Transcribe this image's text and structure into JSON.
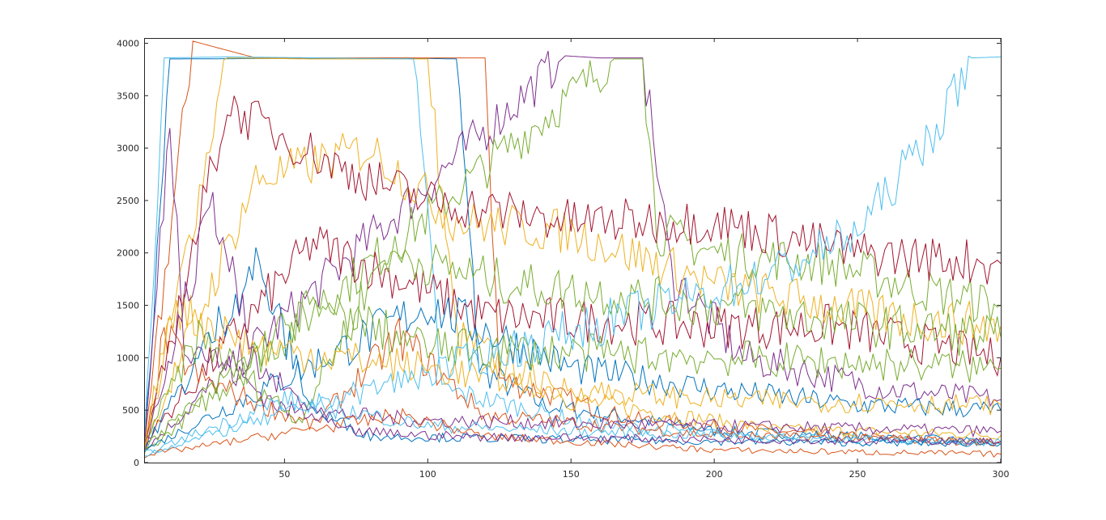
{
  "chart_data": {
    "type": "line",
    "title": "",
    "xlabel": "",
    "ylabel": "",
    "xlim": [
      1,
      300
    ],
    "ylim": [
      0,
      4050
    ],
    "x_ticks": [
      {
        "value": 50,
        "label": "50"
      },
      {
        "value": 100,
        "label": "100"
      },
      {
        "value": 150,
        "label": "150"
      },
      {
        "value": 200,
        "label": "200"
      },
      {
        "value": 250,
        "label": "250"
      },
      {
        "value": 300,
        "label": "300"
      }
    ],
    "y_ticks": [
      {
        "value": 0,
        "label": "0"
      },
      {
        "value": 500,
        "label": "500"
      },
      {
        "value": 1000,
        "label": "1000"
      },
      {
        "value": 1500,
        "label": "1500"
      },
      {
        "value": 2000,
        "label": "2000"
      },
      {
        "value": 2500,
        "label": "2500"
      },
      {
        "value": 3000,
        "label": "3000"
      },
      {
        "value": 3500,
        "label": "3500"
      },
      {
        "value": 4000,
        "label": "4000"
      }
    ],
    "grid": false,
    "legend": "none",
    "colors": [
      "#0072BD",
      "#D95319",
      "#EDB120",
      "#7E2F8E",
      "#77AC30",
      "#4DBEEE",
      "#A2142F"
    ],
    "series": [
      {
        "values": [
          [
            1,
            60
          ],
          [
            10,
            3850
          ],
          [
            90,
            3860
          ],
          [
            110,
            3850
          ],
          [
            118,
            900
          ],
          [
            140,
            550
          ],
          [
            200,
            300
          ],
          [
            250,
            250
          ],
          [
            300,
            200
          ]
        ]
      },
      {
        "values": [
          [
            1,
            100
          ],
          [
            18,
            4020
          ],
          [
            40,
            3860
          ],
          [
            120,
            3860
          ],
          [
            125,
            800
          ],
          [
            170,
            420
          ],
          [
            230,
            280
          ],
          [
            300,
            180
          ]
        ]
      },
      {
        "values": [
          [
            1,
            80
          ],
          [
            30,
            3860
          ],
          [
            60,
            3850
          ],
          [
            100,
            3850
          ],
          [
            110,
            1200
          ],
          [
            150,
            600
          ],
          [
            220,
            320
          ],
          [
            300,
            260
          ]
        ]
      },
      {
        "values": [
          [
            1,
            120
          ],
          [
            148,
            3880
          ],
          [
            160,
            3860
          ],
          [
            175,
            3860
          ],
          [
            185,
            1800
          ],
          [
            210,
            1000
          ],
          [
            260,
            700
          ],
          [
            300,
            600
          ]
        ]
      },
      {
        "values": [
          [
            1,
            90
          ],
          [
            165,
            3850
          ],
          [
            175,
            3850
          ],
          [
            180,
            2200
          ],
          [
            200,
            2000
          ],
          [
            240,
            1900
          ],
          [
            280,
            1600
          ],
          [
            300,
            1500
          ]
        ]
      },
      {
        "values": [
          [
            1,
            150
          ],
          [
            8,
            3860
          ],
          [
            30,
            3870
          ],
          [
            95,
            3850
          ],
          [
            105,
            700
          ],
          [
            160,
            350
          ],
          [
            240,
            220
          ],
          [
            300,
            180
          ]
        ]
      },
      {
        "values": [
          [
            1,
            200
          ],
          [
            60,
            2100
          ],
          [
            120,
            1400
          ],
          [
            200,
            1300
          ],
          [
            240,
            1300
          ],
          [
            300,
            1000
          ]
        ]
      },
      {
        "values": [
          [
            1,
            120
          ],
          [
            100,
            1500
          ],
          [
            150,
            900
          ],
          [
            200,
            700
          ],
          [
            250,
            550
          ],
          [
            300,
            500
          ]
        ]
      },
      {
        "values": [
          [
            1,
            100
          ],
          [
            8,
            1200
          ],
          [
            20,
            800
          ],
          [
            60,
            350
          ],
          [
            90,
            1200
          ],
          [
            120,
            450
          ],
          [
            200,
            260
          ],
          [
            300,
            200
          ]
        ]
      },
      {
        "values": [
          [
            1,
            150
          ],
          [
            40,
            2700
          ],
          [
            80,
            3000
          ],
          [
            110,
            2300
          ],
          [
            150,
            2200
          ],
          [
            200,
            1700
          ],
          [
            260,
            1400
          ],
          [
            300,
            1300
          ]
        ]
      },
      {
        "values": [
          [
            1,
            90
          ],
          [
            10,
            3270
          ],
          [
            15,
            1200
          ],
          [
            50,
            500
          ],
          [
            100,
            400
          ],
          [
            200,
            350
          ],
          [
            300,
            300
          ]
        ]
      },
      {
        "values": [
          [
            1,
            200
          ],
          [
            20,
            1200
          ],
          [
            55,
            400
          ],
          [
            85,
            2000
          ],
          [
            130,
            1700
          ],
          [
            200,
            1500
          ],
          [
            260,
            1300
          ],
          [
            300,
            1200
          ]
        ]
      },
      {
        "values": [
          [
            1,
            80
          ],
          [
            50,
            600
          ],
          [
            100,
            350
          ],
          [
            150,
            300
          ],
          [
            200,
            260
          ],
          [
            250,
            220
          ],
          [
            300,
            200
          ]
        ]
      },
      {
        "values": [
          [
            1,
            110
          ],
          [
            30,
            3400
          ],
          [
            70,
            2800
          ],
          [
            100,
            2500
          ],
          [
            150,
            2300
          ],
          [
            200,
            2300
          ],
          [
            250,
            2000
          ],
          [
            300,
            1900
          ]
        ]
      },
      {
        "values": [
          [
            1,
            130
          ],
          [
            40,
            1900
          ],
          [
            60,
            500
          ],
          [
            80,
            250
          ],
          [
            200,
            200
          ],
          [
            300,
            180
          ]
        ]
      },
      {
        "values": [
          [
            1,
            70
          ],
          [
            90,
            450
          ],
          [
            120,
            250
          ],
          [
            200,
            120
          ],
          [
            300,
            80
          ]
        ]
      },
      {
        "values": [
          [
            1,
            100
          ],
          [
            10,
            1500
          ],
          [
            40,
            1100
          ],
          [
            100,
            900
          ],
          [
            150,
            700
          ],
          [
            200,
            600
          ],
          [
            300,
            550
          ]
        ]
      },
      {
        "values": [
          [
            1,
            90
          ],
          [
            25,
            2500
          ],
          [
            40,
            900
          ],
          [
            70,
            300
          ],
          [
            110,
            250
          ],
          [
            200,
            220
          ],
          [
            300,
            200
          ]
        ]
      },
      {
        "values": [
          [
            1,
            150
          ],
          [
            60,
            1500
          ],
          [
            100,
            1100
          ],
          [
            200,
            1000
          ],
          [
            300,
            900
          ]
        ]
      },
      {
        "values": [
          [
            1,
            80
          ],
          [
            220,
            1800
          ],
          [
            250,
            2200
          ],
          [
            280,
            3300
          ],
          [
            290,
            3860
          ],
          [
            300,
            3870
          ]
        ]
      }
    ]
  }
}
